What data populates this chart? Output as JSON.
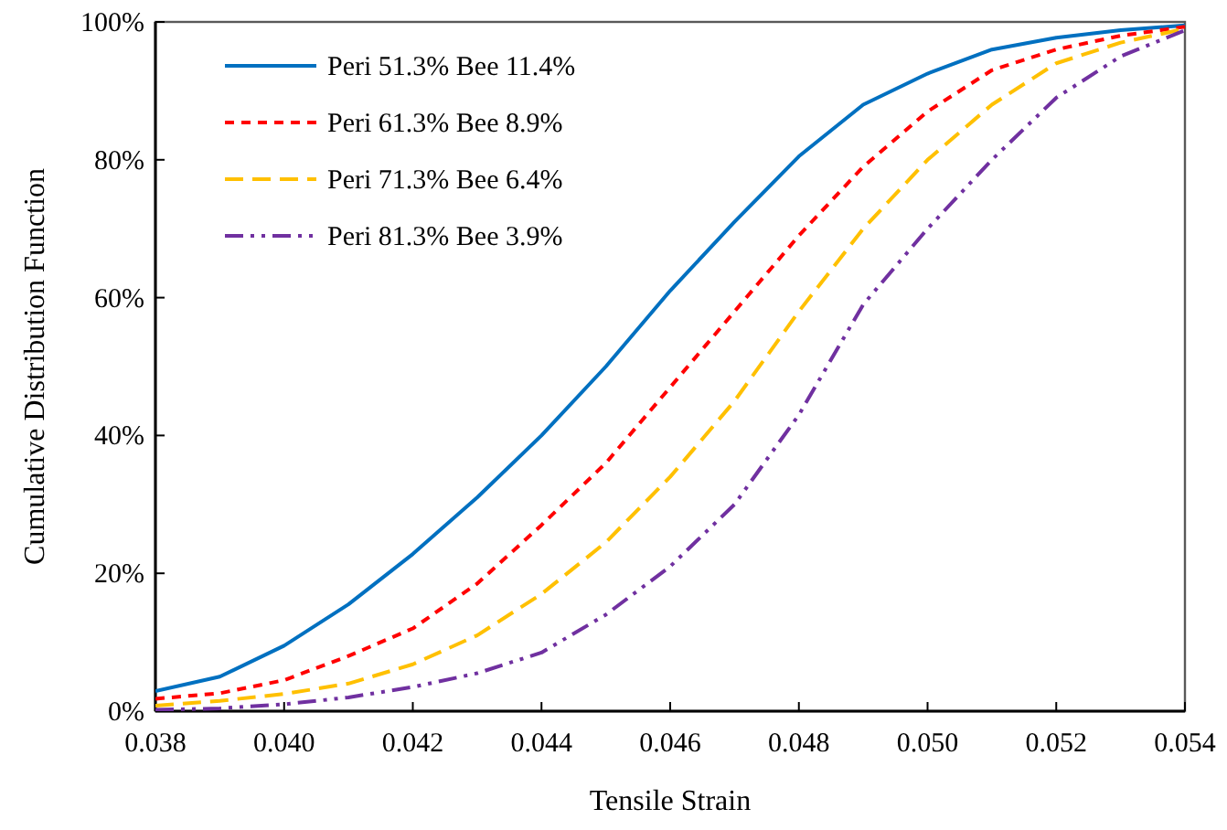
{
  "chart_data": {
    "type": "line",
    "xlabel": "Tensile Strain",
    "ylabel": "Cumulative Distribution Function",
    "x": [
      0.038,
      0.039,
      0.04,
      0.041,
      0.042,
      0.043,
      0.044,
      0.045,
      0.046,
      0.047,
      0.048,
      0.049,
      0.05,
      0.051,
      0.052,
      0.053,
      0.054
    ],
    "series": [
      {
        "name": "Peri 51.3% Bee 11.4%",
        "color": "#0070c0",
        "line_style": "solid",
        "values": [
          2.9,
          5,
          9.5,
          15.5,
          22.8,
          31,
          40,
          50,
          61,
          71,
          80.5,
          88,
          92.5,
          96,
          97.7,
          98.8,
          99.5
        ]
      },
      {
        "name": "Peri 61.3% Bee 8.9%",
        "color": "#ff0000",
        "line_style": "dotted",
        "values": [
          1.8,
          2.6,
          4.5,
          8,
          12,
          18.5,
          27,
          36,
          47,
          58,
          69,
          79,
          87,
          93,
          96,
          98,
          99.3
        ]
      },
      {
        "name": "Peri 71.3% Bee 6.4%",
        "color": "#ffc000",
        "line_style": "dashed",
        "values": [
          0.8,
          1.5,
          2.5,
          4,
          6.8,
          11,
          17,
          24.5,
          34,
          45,
          58,
          70,
          80,
          88,
          94,
          97,
          99
        ]
      },
      {
        "name": "Peri 81.3% Bee 3.9%",
        "color": "#7030a0",
        "line_style": "dashed",
        "values": [
          0.2,
          0.4,
          1,
          2,
          3.5,
          5.5,
          8.5,
          14,
          21,
          30,
          43,
          59,
          70,
          80,
          89,
          95,
          98.8
        ]
      }
    ],
    "xlim": [
      0.038,
      0.054
    ],
    "xticks": [
      {
        "value": 0.038,
        "label": "0.038"
      },
      {
        "value": 0.04,
        "label": "0.040"
      },
      {
        "value": 0.042,
        "label": "0.042"
      },
      {
        "value": 0.044,
        "label": "0.044"
      },
      {
        "value": 0.046,
        "label": "0.046"
      },
      {
        "value": 0.048,
        "label": "0.048"
      },
      {
        "value": 0.05,
        "label": "0.050"
      },
      {
        "value": 0.052,
        "label": "0.052"
      },
      {
        "value": 0.054,
        "label": "0.054"
      }
    ],
    "ylim": [
      0,
      100
    ],
    "yticks": [
      {
        "value": 0,
        "label": "0%"
      },
      {
        "value": 20,
        "label": "20%"
      },
      {
        "value": 40,
        "label": "40%"
      },
      {
        "value": 60,
        "label": "60%"
      },
      {
        "value": 80,
        "label": "80%"
      },
      {
        "value": 100,
        "label": "100%"
      }
    ],
    "legend": "top left",
    "grid": false,
    "marker": "none"
  }
}
